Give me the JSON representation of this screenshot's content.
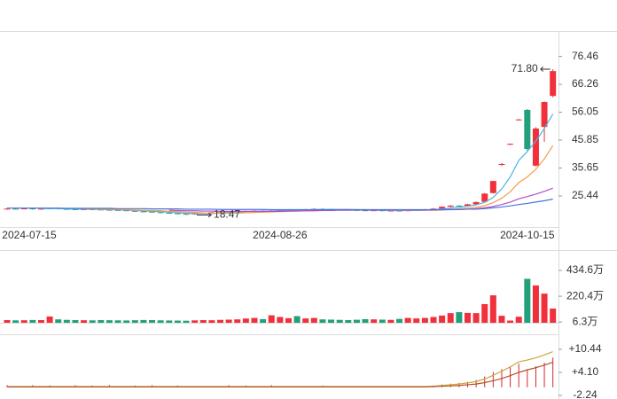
{
  "chart_data": [
    {
      "type": "candlestick",
      "categories": [
        null,
        null,
        "2024-07-15",
        null,
        null,
        null,
        null,
        null,
        null,
        null,
        null,
        null,
        null,
        null,
        null,
        null,
        null,
        null,
        null,
        null,
        null,
        null,
        null,
        null,
        null,
        null,
        null,
        null,
        null,
        null,
        null,
        null,
        "2024-08-26",
        null,
        null,
        null,
        null,
        null,
        null,
        null,
        null,
        null,
        null,
        null,
        null,
        null,
        null,
        null,
        null,
        null,
        null,
        null,
        null,
        null,
        null,
        null,
        null,
        null,
        null,
        null,
        null,
        "2024-10-15",
        null,
        null,
        null
      ],
      "open": [
        20.6,
        20.8,
        20.7,
        20.9,
        20.6,
        20.8,
        21.0,
        20.7,
        20.6,
        20.5,
        20.6,
        20.5,
        20.4,
        20.3,
        20.2,
        20.0,
        19.8,
        19.7,
        19.5,
        19.3,
        19.1,
        18.9,
        18.8,
        19.0,
        19.2,
        19.4,
        19.5,
        19.7,
        19.8,
        19.9,
        20.0,
        19.9,
        20.1,
        20.3,
        20.4,
        20.2,
        20.5,
        20.7,
        20.6,
        20.5,
        20.4,
        20.3,
        20.2,
        20.1,
        20.2,
        20.0,
        20.1,
        20.0,
        20.2,
        20.3,
        20.5,
        20.8,
        21.5,
        21.9,
        21.8,
        22.4,
        23.3,
        26.5,
        36.8,
        44.2,
        53.2,
        56.9,
        36.5,
        50.7,
        62.0
      ],
      "high": [
        21.0,
        21.0,
        21.1,
        21.1,
        21.0,
        21.2,
        21.2,
        20.9,
        20.8,
        20.8,
        20.8,
        20.7,
        20.6,
        20.5,
        20.4,
        20.2,
        20.0,
        19.9,
        19.7,
        19.5,
        19.3,
        19.1,
        19.2,
        19.4,
        19.6,
        19.7,
        19.9,
        20.0,
        20.1,
        20.2,
        20.2,
        20.3,
        20.5,
        20.6,
        20.6,
        20.7,
        20.9,
        20.9,
        20.8,
        20.7,
        20.6,
        20.5,
        20.4,
        20.4,
        20.4,
        20.3,
        20.3,
        20.4,
        20.5,
        20.7,
        21.0,
        21.7,
        22.1,
        22.1,
        22.6,
        23.4,
        26.5,
        31.0,
        37.5,
        44.6,
        53.6,
        57.2,
        50.6,
        60.0,
        71.8
      ],
      "low": [
        20.4,
        20.5,
        20.5,
        20.4,
        20.4,
        20.6,
        20.5,
        20.4,
        20.3,
        20.3,
        20.3,
        20.2,
        20.1,
        20.0,
        19.8,
        19.6,
        19.5,
        19.3,
        19.1,
        18.9,
        18.7,
        18.47,
        18.6,
        18.8,
        19.0,
        19.2,
        19.3,
        19.5,
        19.6,
        19.7,
        19.7,
        19.7,
        19.9,
        20.1,
        20.0,
        20.0,
        20.3,
        20.4,
        20.3,
        20.2,
        20.1,
        20.0,
        19.9,
        19.9,
        19.8,
        19.8,
        19.8,
        19.8,
        20.0,
        20.1,
        20.3,
        20.6,
        21.3,
        21.6,
        21.6,
        22.2,
        23.0,
        26.3,
        36.4,
        44.0,
        53.1,
        42.0,
        36.2,
        45.2,
        61.5
      ],
      "close": [
        20.8,
        20.7,
        20.9,
        20.6,
        20.8,
        21.0,
        20.7,
        20.6,
        20.5,
        20.6,
        20.5,
        20.4,
        20.3,
        20.2,
        20.0,
        19.8,
        19.7,
        19.5,
        19.3,
        19.1,
        18.9,
        18.8,
        19.0,
        19.2,
        19.4,
        19.5,
        19.7,
        19.8,
        19.9,
        20.0,
        19.9,
        20.1,
        20.3,
        20.4,
        20.2,
        20.5,
        20.7,
        20.6,
        20.5,
        20.4,
        20.3,
        20.2,
        20.1,
        20.2,
        20.0,
        20.1,
        20.0,
        20.2,
        20.3,
        20.5,
        20.8,
        21.5,
        21.9,
        21.8,
        22.4,
        23.2,
        26.3,
        30.9,
        37.1,
        44.5,
        53.4,
        42.6,
        50.1,
        59.8,
        71.1
      ],
      "up_color": "#f0313b",
      "down_color": "#22a079",
      "ylim": [
        14.09,
        85.73
      ],
      "yticks": [
        25.44,
        35.65,
        45.85,
        56.05,
        66.26,
        76.46
      ],
      "lines": [
        {
          "color": "#4db3e8",
          "values": [
            null,
            null,
            null,
            null,
            20.8,
            20.8,
            20.8,
            20.7,
            20.7,
            20.6,
            20.6,
            20.5,
            20.5,
            20.4,
            20.3,
            20.1,
            20.0,
            19.8,
            19.7,
            19.5,
            19.3,
            19.1,
            19.0,
            19.0,
            19.0,
            19.2,
            19.4,
            19.5,
            19.7,
            19.8,
            19.9,
            19.9,
            20.0,
            20.1,
            20.2,
            20.3,
            20.4,
            20.5,
            20.5,
            20.5,
            20.5,
            20.4,
            20.3,
            20.2,
            20.2,
            20.1,
            20.1,
            20.1,
            20.1,
            20.2,
            20.4,
            20.7,
            21.0,
            21.3,
            21.7,
            22.2,
            23.1,
            24.9,
            28.0,
            32.4,
            38.4,
            41.7,
            45.5,
            50.1,
            55.4
          ]
        },
        {
          "color": "#f59a4a",
          "values": [
            null,
            null,
            null,
            null,
            null,
            null,
            null,
            null,
            null,
            20.7,
            20.7,
            20.6,
            20.6,
            20.5,
            20.4,
            20.3,
            20.2,
            20.1,
            20.0,
            19.8,
            19.7,
            19.5,
            19.4,
            19.2,
            19.1,
            19.1,
            19.1,
            19.2,
            19.3,
            19.4,
            19.5,
            19.6,
            19.7,
            19.8,
            19.9,
            20.0,
            20.2,
            20.3,
            20.3,
            20.4,
            20.4,
            20.4,
            20.4,
            20.3,
            20.3,
            20.3,
            20.2,
            20.2,
            20.2,
            20.2,
            20.2,
            20.3,
            20.5,
            20.7,
            21.0,
            21.3,
            21.9,
            23.0,
            24.6,
            27.0,
            30.3,
            32.4,
            35.2,
            39.0,
            43.9
          ]
        },
        {
          "color": "#b04fc9",
          "values": [
            null,
            null,
            null,
            null,
            null,
            null,
            null,
            null,
            null,
            null,
            null,
            null,
            null,
            null,
            null,
            null,
            null,
            null,
            null,
            20.2,
            20.1,
            20.0,
            20.0,
            19.9,
            19.9,
            19.8,
            19.8,
            19.8,
            19.8,
            19.8,
            19.8,
            19.8,
            19.8,
            19.9,
            19.9,
            20.0,
            20.0,
            20.1,
            20.1,
            20.2,
            20.2,
            20.3,
            20.3,
            20.3,
            20.3,
            20.3,
            20.3,
            20.3,
            20.3,
            20.3,
            20.3,
            20.4,
            20.4,
            20.5,
            20.6,
            20.8,
            21.1,
            21.6,
            22.3,
            23.2,
            24.4,
            25.2,
            26.1,
            27.1,
            28.3
          ]
        },
        {
          "color": "#4a72d9",
          "values": [
            21.0,
            21.0,
            21.0,
            21.0,
            21.0,
            21.0,
            21.0,
            20.9,
            20.9,
            20.9,
            20.9,
            20.9,
            20.9,
            20.8,
            20.8,
            20.8,
            20.8,
            20.7,
            20.7,
            20.7,
            20.7,
            20.6,
            20.6,
            20.6,
            20.6,
            20.5,
            20.5,
            20.5,
            20.5,
            20.5,
            20.5,
            20.4,
            20.4,
            20.4,
            20.4,
            20.4,
            20.4,
            20.4,
            20.4,
            20.4,
            20.4,
            20.4,
            20.4,
            20.4,
            20.4,
            20.4,
            20.4,
            20.4,
            20.4,
            20.4,
            20.4,
            20.5,
            20.5,
            20.5,
            20.6,
            20.6,
            20.8,
            21.1,
            21.4,
            21.8,
            22.3,
            22.7,
            23.2,
            23.7,
            24.3
          ]
        }
      ],
      "max_label": {
        "value": 71.8,
        "label": "71.80"
      },
      "min_label": {
        "value": 18.47,
        "label": "18.47"
      }
    },
    {
      "type": "volume",
      "values": [
        22,
        20,
        21,
        23,
        22,
        52,
        28,
        24,
        22,
        21,
        20,
        22,
        21,
        20,
        19,
        21,
        23,
        22,
        20,
        19,
        18,
        17,
        20,
        22,
        21,
        24,
        26,
        28,
        35,
        40,
        30,
        62,
        48,
        38,
        55,
        36,
        40,
        28,
        26,
        24,
        22,
        25,
        30,
        28,
        26,
        24,
        32,
        40,
        36,
        40,
        48,
        60,
        80,
        88,
        82,
        80,
        155,
        228,
        58,
        18,
        50,
        365,
        310,
        242,
        118
      ],
      "ylim": [
        0,
        596.8
      ],
      "yticks": [
        {
          "value": 6.3,
          "label": "6.3万"
        },
        {
          "value": 220.4,
          "label": "220.4万"
        },
        {
          "value": 434.6,
          "label": "434.6万"
        }
      ]
    },
    {
      "type": "indicator",
      "values": [
        0.6,
        0,
        0,
        0.6,
        0,
        0.5,
        0,
        0,
        0.6,
        0,
        0.5,
        0,
        0.6,
        0,
        0,
        0.5,
        0,
        0.6,
        0,
        0,
        0.5,
        0,
        0,
        0,
        0,
        0,
        0.6,
        0,
        0.5,
        0,
        0,
        0.6,
        0,
        0,
        0,
        0,
        0,
        0.5,
        0,
        0,
        0,
        0,
        0,
        0,
        0,
        0,
        0,
        0,
        0,
        0,
        0.5,
        0.8,
        1.0,
        1.2,
        1.5,
        2.0,
        3.0,
        4.2,
        5.0,
        5.6,
        6.5,
        5.0,
        5.8,
        6.8,
        8.2
      ],
      "color": "#d9262f",
      "lines": [
        {
          "color": "#c9a83a",
          "values": [
            0.2,
            0.2,
            0.2,
            0.2,
            0.2,
            0.2,
            0.2,
            0.2,
            0.2,
            0.2,
            0.2,
            0.2,
            0.2,
            0.2,
            0.2,
            0.2,
            0.2,
            0.2,
            0.2,
            0.2,
            0.2,
            0.2,
            0.2,
            0.2,
            0.2,
            0.2,
            0.2,
            0.2,
            0.2,
            0.2,
            0.2,
            0.2,
            0.2,
            0.2,
            0.2,
            0.2,
            0.2,
            0.2,
            0.2,
            0.2,
            0.2,
            0.2,
            0.2,
            0.2,
            0.2,
            0.2,
            0.2,
            0.2,
            0.2,
            0.2,
            0.3,
            0.5,
            0.7,
            0.9,
            1.2,
            1.6,
            2.3,
            3.3,
            4.4,
            5.6,
            7.0,
            7.5,
            8.1,
            8.9,
            9.8
          ]
        },
        {
          "color": "#b5522c",
          "values": [
            0.1,
            0.1,
            0.1,
            0.1,
            0.1,
            0.1,
            0.1,
            0.1,
            0.1,
            0.1,
            0.1,
            0.1,
            0.1,
            0.1,
            0.1,
            0.1,
            0.1,
            0.1,
            0.1,
            0.1,
            0.1,
            0.1,
            0.1,
            0.1,
            0.1,
            0.1,
            0.1,
            0.1,
            0.1,
            0.1,
            0.1,
            0.1,
            0.1,
            0.1,
            0.1,
            0.1,
            0.1,
            0.1,
            0.1,
            0.1,
            0.1,
            0.1,
            0.1,
            0.1,
            0.1,
            0.1,
            0.1,
            0.1,
            0.1,
            0.1,
            0.2,
            0.3,
            0.4,
            0.5,
            0.7,
            0.9,
            1.3,
            1.8,
            2.4,
            3.2,
            4.1,
            4.8,
            5.4,
            6.1,
            6.9
          ]
        }
      ],
      "ylim": [
        -2.73,
        14.34
      ],
      "yticks": [
        {
          "value": -2.24,
          "label": "-2.24"
        },
        {
          "value": 4.1,
          "label": "+4.10"
        },
        {
          "value": 10.44,
          "label": "+10.44"
        }
      ]
    }
  ]
}
